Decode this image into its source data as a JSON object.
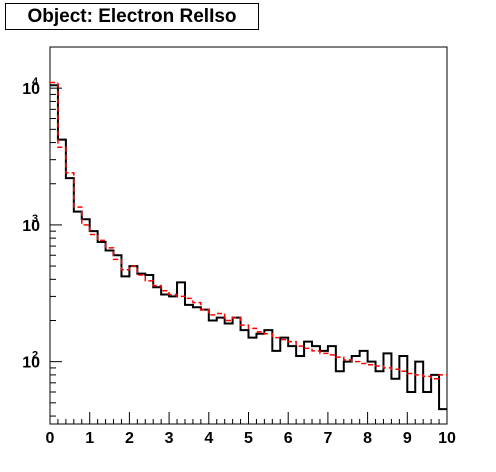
{
  "title": "Object: Electron RelIso",
  "chart_data": {
    "type": "histogram",
    "title": "Object: Electron RelIso",
    "xlabel": "",
    "ylabel": "",
    "xlim": [
      0,
      10
    ],
    "ylim": [
      35,
      20000
    ],
    "yscale": "log",
    "bin_edges_start": 0,
    "bin_width": 0.2,
    "x_ticks": [
      "0",
      "1",
      "2",
      "3",
      "4",
      "5",
      "6",
      "7",
      "8",
      "9",
      "10"
    ],
    "y_ticks": [
      {
        "value": 100,
        "base": "10",
        "exp": "2"
      },
      {
        "value": 1000,
        "base": "10",
        "exp": "3"
      },
      {
        "value": 10000,
        "base": "10",
        "exp": "4"
      }
    ],
    "grid": false,
    "series": [
      {
        "style": "solid",
        "color": "#000000",
        "values": [
          10500,
          4200,
          2200,
          1250,
          1100,
          900,
          750,
          650,
          600,
          420,
          500,
          440,
          430,
          350,
          310,
          300,
          380,
          260,
          250,
          240,
          200,
          210,
          190,
          210,
          170,
          150,
          160,
          170,
          120,
          150,
          130,
          110,
          140,
          130,
          120,
          130,
          85,
          100,
          110,
          120,
          100,
          85,
          115,
          75,
          110,
          60,
          100,
          60,
          80,
          45
        ]
      },
      {
        "style": "dashed",
        "color": "#ff0000",
        "values": [
          11000,
          3700,
          2400,
          1350,
          1000,
          850,
          770,
          680,
          560,
          470,
          500,
          430,
          390,
          360,
          330,
          310,
          300,
          290,
          270,
          240,
          220,
          225,
          200,
          210,
          185,
          175,
          165,
          160,
          150,
          145,
          140,
          130,
          125,
          120,
          115,
          112,
          108,
          103,
          100,
          97,
          95,
          93,
          90,
          88,
          85,
          82,
          80,
          78,
          75,
          80
        ]
      }
    ]
  }
}
